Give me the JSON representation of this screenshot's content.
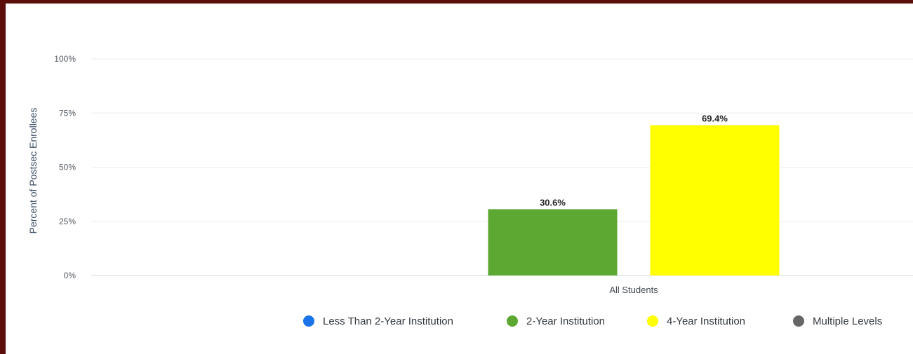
{
  "chart_data": {
    "type": "bar",
    "ylabel": "Percent of Postsec Enrollees",
    "xlabel": "",
    "ylim": [
      0,
      100
    ],
    "yticks": [
      0,
      25,
      50,
      75,
      100
    ],
    "ytick_labels": [
      "0%",
      "25%",
      "50%",
      "75%",
      "100%"
    ],
    "categories": [
      "All Students"
    ],
    "series": [
      {
        "name": "Less Than 2-Year Institution",
        "color": "#1a73e8",
        "values": [
          0
        ]
      },
      {
        "name": "2-Year Institution",
        "color": "#5ca832",
        "values": [
          30.6
        ],
        "value_labels": [
          "30.6%"
        ]
      },
      {
        "name": "4-Year Institution",
        "color": "#ffff00",
        "values": [
          69.4
        ],
        "value_labels": [
          "69.4%"
        ]
      },
      {
        "name": "Multiple Levels",
        "color": "#666666",
        "values": [
          0
        ]
      }
    ],
    "grid": true,
    "legend_position": "bottom-right"
  }
}
